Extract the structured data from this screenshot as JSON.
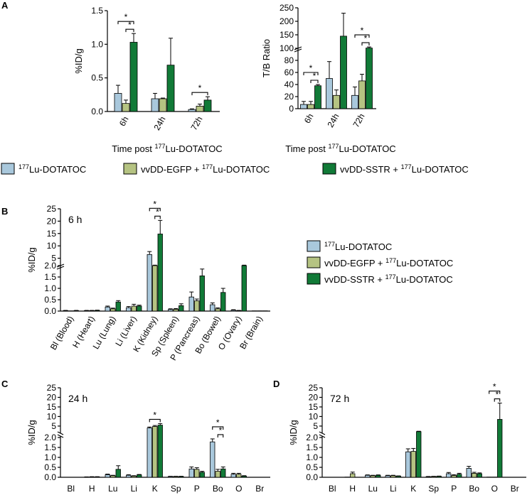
{
  "colors": {
    "lu": "#a9c8dc",
    "egfp": "#b5c382",
    "sstr": "#117a37",
    "axis": "#000000"
  },
  "legend": {
    "series": [
      {
        "pre": "177",
        "text": "Lu-DOTATOC",
        "color": "#a9c8dc"
      },
      {
        "pre": "vvDD-EGFP + ",
        "sup": "177",
        "text": "Lu-DOTATOC",
        "color": "#b5c382"
      },
      {
        "pre": "vvDD-SSTR + ",
        "sup": "177",
        "text": "Lu-DOTATOC",
        "color": "#117a37"
      }
    ]
  },
  "chart_data": [
    {
      "id": "A-left",
      "panel": "A",
      "type": "bar",
      "ylabel": "%ID/g",
      "xlabel_pre": "Time post ",
      "xlabel_sup": "177",
      "xlabel_post": "Lu-DOTATOC",
      "categories": [
        "6h",
        "24h",
        "72h"
      ],
      "ylim": [
        0,
        1.5
      ],
      "yticks": [
        0.0,
        0.5,
        1.0,
        1.5
      ],
      "ytick_labels": [
        "0.0",
        "0.5",
        "1.0",
        "1.5"
      ],
      "series": [
        {
          "name": "177Lu-DOTATOC",
          "values": [
            0.27,
            0.19,
            0.03
          ],
          "errors": [
            0.12,
            0.08,
            0.01
          ]
        },
        {
          "name": "vvDD-EGFP + 177Lu-DOTATOC",
          "values": [
            0.12,
            0.19,
            0.08
          ],
          "errors": [
            0.05,
            0.01,
            0.03
          ]
        },
        {
          "name": "vvDD-SSTR + 177Lu-DOTATOC",
          "values": [
            1.03,
            0.69,
            0.17
          ],
          "errors": [
            0.13,
            0.4,
            0.05
          ]
        }
      ],
      "significance": [
        {
          "cat": 0,
          "from": 0,
          "to": 2,
          "label": "*"
        },
        {
          "cat": 0,
          "from": 1,
          "to": 2,
          "label": "*"
        },
        {
          "cat": 2,
          "from": 0,
          "to": 2,
          "label": "*"
        }
      ]
    },
    {
      "id": "A-right",
      "panel": "",
      "type": "bar",
      "ylabel": "T/B Ratio",
      "xlabel_pre": "Time post ",
      "xlabel_sup": "177",
      "xlabel_post": "Lu-DOTATOC",
      "categories": [
        "6h",
        "24h",
        "72h"
      ],
      "axis_break": {
        "lower": [
          0,
          100
        ],
        "upper": [
          100,
          250
        ]
      },
      "yticks": [
        0,
        20,
        40,
        60,
        80,
        100,
        150,
        200,
        250
      ],
      "ytick_labels": [
        "0",
        "20",
        "40",
        "60",
        "80",
        "100",
        "150",
        "200",
        "250"
      ],
      "series": [
        {
          "name": "177Lu-DOTATOC",
          "values": [
            7,
            50,
            22
          ],
          "errors": [
            5,
            28,
            14
          ]
        },
        {
          "name": "vvDD-EGFP + 177Lu-DOTATOC",
          "values": [
            7,
            22,
            46
          ],
          "errors": [
            5,
            9,
            11
          ]
        },
        {
          "name": "vvDD-SSTR + 177Lu-DOTATOC",
          "values": [
            38,
            145,
            101
          ],
          "errors": [
            2,
            85,
            4
          ]
        }
      ],
      "significance": [
        {
          "cat": 0,
          "from": 0,
          "to": 2,
          "label": "*"
        },
        {
          "cat": 0,
          "from": 1,
          "to": 2,
          "label": "*"
        },
        {
          "cat": 2,
          "from": 0,
          "to": 2,
          "label": "*"
        },
        {
          "cat": 2,
          "from": 1,
          "to": 2,
          "label": "*"
        }
      ]
    },
    {
      "id": "B",
      "panel": "B",
      "type": "bar",
      "title": "6 h",
      "ylabel": "%ID/g",
      "categories": [
        "Bl (Blood)",
        "H (Heart)",
        "Lu (Lung)",
        "Li (Liver)",
        "K (Kidney)",
        "Sp (Spleen)",
        "P (Pancreas)",
        "Bo (Bowel)",
        "O (Ovary)",
        "Br (Brain)"
      ],
      "axis_break": {
        "lower": [
          0,
          2
        ],
        "upper": [
          2,
          25
        ]
      },
      "yticks": [
        0.0,
        0.5,
        1.0,
        1.5,
        2.0,
        5,
        10,
        15,
        20,
        25
      ],
      "ytick_labels": [
        "0.0",
        "0.5",
        "1.0",
        "1.5",
        "2.0",
        "5",
        "10",
        "15",
        "20",
        "25"
      ],
      "series": [
        {
          "name": "177Lu-DOTATOC",
          "values": [
            0.02,
            0.02,
            0.18,
            0.15,
            6.5,
            0.07,
            0.62,
            0.28,
            0.04,
            0.01
          ],
          "errors": [
            0.01,
            0.01,
            0.04,
            0.05,
            1.2,
            0.03,
            0.22,
            0.08,
            0.02,
            0.0
          ]
        },
        {
          "name": "vvDD-EGFP + 177Lu-DOTATOC",
          "values": [
            0.01,
            0.02,
            0.1,
            0.22,
            2.0,
            0.08,
            0.45,
            0.1,
            0.02,
            0.01
          ],
          "errors": [
            0.0,
            0.01,
            0.03,
            0.08,
            0.2,
            0.03,
            0.08,
            0.04,
            0.01,
            0.0
          ]
        },
        {
          "name": "vvDD-SSTR + 177Lu-DOTATOC",
          "values": [
            0.02,
            0.03,
            0.4,
            0.22,
            14.8,
            0.24,
            1.55,
            0.82,
            2.0,
            0.01
          ],
          "errors": [
            0.01,
            0.01,
            0.06,
            0.04,
            5.5,
            0.08,
            0.3,
            0.18,
            0.2,
            0.0
          ]
        }
      ],
      "significance": [
        {
          "cat": 4,
          "from": 0,
          "to": 2,
          "label": "*"
        },
        {
          "cat": 4,
          "from": 1,
          "to": 2,
          "label": "*"
        }
      ]
    },
    {
      "id": "C",
      "panel": "C",
      "type": "bar",
      "title": "24 h",
      "ylabel": "%ID/g",
      "categories": [
        "Bl",
        "H",
        "Lu",
        "Li",
        "K",
        "Sp",
        "P",
        "Bo",
        "O",
        "Br"
      ],
      "axis_break": {
        "lower": [
          0,
          2
        ],
        "upper": [
          2,
          25
        ]
      },
      "yticks": [
        0.0,
        0.5,
        1.0,
        1.5,
        2.0,
        5,
        10,
        15,
        20,
        25
      ],
      "ytick_labels": [
        "0.0",
        "0.5",
        "1.0",
        "1.5",
        "2.0",
        "5",
        "10",
        "15",
        "20",
        "25"
      ],
      "series": [
        {
          "name": "177Lu-DOTATOC",
          "values": [
            0.0,
            0.01,
            0.13,
            0.1,
            4.0,
            0.04,
            0.42,
            1.78,
            0.15,
            0.0
          ],
          "errors": [
            0.0,
            0.01,
            0.03,
            0.03,
            0.5,
            0.01,
            0.1,
            0.15,
            0.05,
            0.0
          ]
        },
        {
          "name": "vvDD-EGFP + 177Lu-DOTATOC",
          "values": [
            0.0,
            0.02,
            0.08,
            0.06,
            4.8,
            0.04,
            0.4,
            0.3,
            0.15,
            0.0
          ],
          "errors": [
            0.0,
            0.01,
            0.02,
            0.02,
            0.5,
            0.01,
            0.08,
            0.1,
            0.05,
            0.0
          ]
        },
        {
          "name": "vvDD-SSTR + 177Lu-DOTATOC",
          "values": [
            0.0,
            0.02,
            0.4,
            0.12,
            5.5,
            0.04,
            0.25,
            0.42,
            0.06,
            0.0
          ],
          "errors": [
            0.0,
            0.01,
            0.18,
            0.02,
            0.8,
            0.01,
            0.05,
            0.1,
            0.02,
            0.0
          ]
        }
      ],
      "significance": [
        {
          "cat": 4,
          "from": 0,
          "to": 2,
          "label": "*"
        },
        {
          "cat": 7,
          "from": 0,
          "to": 2,
          "label": "*"
        },
        {
          "cat": 7,
          "from": 1,
          "to": 2,
          "label": "*"
        }
      ]
    },
    {
      "id": "D",
      "panel": "D",
      "type": "bar",
      "title": "72 h",
      "ylabel": "%ID/g",
      "categories": [
        "Bl",
        "H",
        "Lu",
        "Li",
        "K",
        "Sp",
        "P",
        "Bo",
        "O",
        "Br"
      ],
      "axis_break": {
        "lower": [
          0,
          2
        ],
        "upper": [
          2,
          25
        ]
      },
      "yticks": [
        0.0,
        0.5,
        1.0,
        1.5,
        2.0,
        5,
        10,
        15,
        20,
        25
      ],
      "ytick_labels": [
        "0.0",
        "0.5",
        "1.0",
        "1.5",
        "2.0",
        "5",
        "10",
        "15",
        "20",
        "25"
      ],
      "series": [
        {
          "name": "177Lu-DOTATOC",
          "values": [
            0.0,
            0.01,
            0.1,
            0.08,
            1.28,
            0.03,
            0.18,
            0.45,
            0.01,
            0.0
          ],
          "errors": [
            0.0,
            0.0,
            0.02,
            0.02,
            0.15,
            0.01,
            0.06,
            0.1,
            0.0,
            0.0
          ]
        },
        {
          "name": "vvDD-EGFP + 177Lu-DOTATOC",
          "values": [
            0.0,
            0.18,
            0.08,
            0.08,
            1.3,
            0.04,
            0.09,
            0.2,
            0.01,
            0.0
          ],
          "errors": [
            0.0,
            0.08,
            0.02,
            0.02,
            0.15,
            0.01,
            0.04,
            0.05,
            0.0,
            0.0
          ]
        },
        {
          "name": "vvDD-SSTR + 177Lu-DOTATOC",
          "values": [
            0.0,
            0.0,
            0.1,
            0.06,
            2.1,
            0.05,
            0.15,
            0.18,
            8.5,
            0.0
          ],
          "errors": [
            0.0,
            0.0,
            0.02,
            0.01,
            0.2,
            0.01,
            0.05,
            0.04,
            8.5,
            0.0
          ]
        }
      ],
      "significance": [
        {
          "cat": 8,
          "from": 0,
          "to": 2,
          "label": "*"
        },
        {
          "cat": 8,
          "from": 1,
          "to": 2,
          "label": "*"
        }
      ]
    }
  ]
}
